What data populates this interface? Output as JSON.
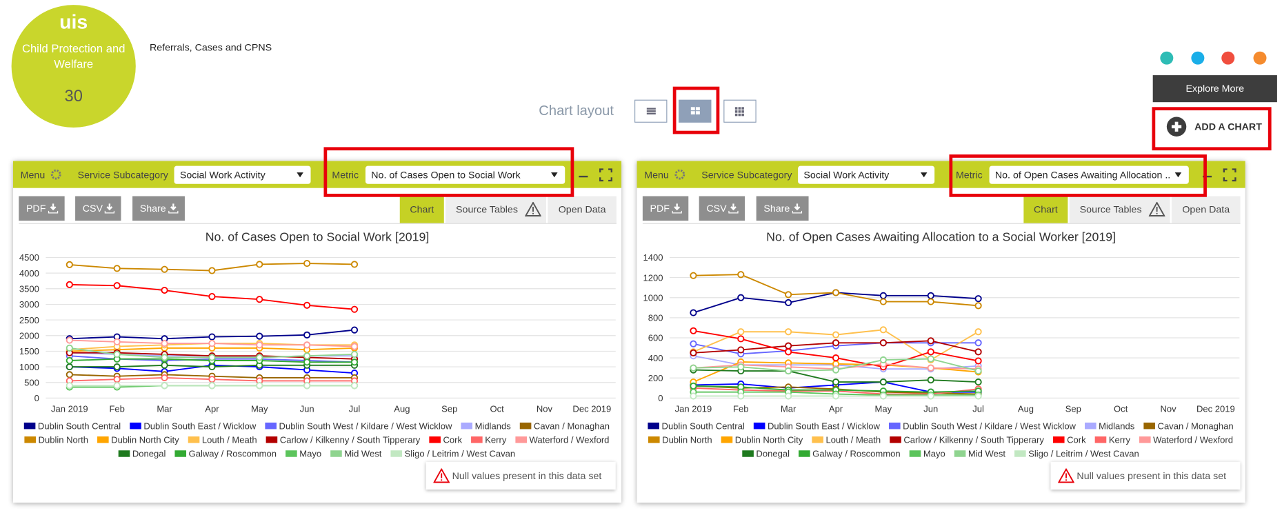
{
  "header": {
    "logo": "uis",
    "tile_title": "Child Protection and Welfare",
    "tile_count": "30",
    "subtitle": "Referrals, Cases and CPNS"
  },
  "layout": {
    "label": "Chart layout"
  },
  "actions": {
    "explore": "Explore More",
    "add": "ADD A CHART"
  },
  "panels": [
    {
      "menu": "Menu",
      "subcategory_label": "Service Subcategory",
      "subcategory": "Social Work Activity",
      "metric_label": "Metric",
      "metric": "No. of Cases Open to Social Work",
      "buttons": [
        "PDF",
        "CSV",
        "Share"
      ],
      "tabs": [
        "Chart",
        "Source Tables",
        "Open Data"
      ],
      "note": "Null values present in this data set"
    },
    {
      "menu": "Menu",
      "subcategory_label": "Service Subcategory",
      "subcategory": "Social Work Activity",
      "metric_label": "Metric",
      "metric": "No. of Open Cases Awaiting Allocation ..",
      "buttons": [
        "PDF",
        "CSV",
        "Share"
      ],
      "tabs": [
        "Chart",
        "Source Tables",
        "Open Data"
      ],
      "note": "Null values present in this data set"
    }
  ],
  "chart_data": [
    {
      "type": "line",
      "title": "No. of Cases Open to Social Work [2019]",
      "categories": [
        "Jan 2019",
        "Feb",
        "Mar",
        "Apr",
        "May",
        "Jun",
        "Jul",
        "Aug",
        "Sep",
        "Oct",
        "Nov",
        "Dec 2019"
      ],
      "ylim": [
        0,
        4500
      ],
      "yticks": [
        0,
        500,
        1000,
        1500,
        2000,
        2500,
        3000,
        3500,
        4000,
        4500
      ],
      "grid": true,
      "series": [
        {
          "name": "Dublin South Central",
          "color": "#00008b",
          "values": [
            1900,
            1960,
            1900,
            1960,
            1980,
            2020,
            2180,
            null,
            null,
            null,
            null,
            null
          ]
        },
        {
          "name": "Dublin South East / Wicklow",
          "color": "#0000ff",
          "values": [
            1000,
            950,
            850,
            1050,
            1000,
            900,
            800,
            null,
            null,
            null,
            null,
            null
          ]
        },
        {
          "name": "Dublin South West / Kildare / West Wicklow",
          "color": "#6666ff",
          "values": [
            1350,
            1250,
            1200,
            1250,
            1250,
            1200,
            1150,
            null,
            null,
            null,
            null,
            null
          ]
        },
        {
          "name": "Midlands",
          "color": "#aaaaff",
          "values": [
            1450,
            1400,
            1350,
            1350,
            1300,
            1350,
            1350,
            null,
            null,
            null,
            null,
            null
          ]
        },
        {
          "name": "Cavan / Monaghan",
          "color": "#996600",
          "values": [
            750,
            700,
            750,
            700,
            650,
            650,
            650,
            null,
            null,
            null,
            null,
            null
          ]
        },
        {
          "name": "Dublin North",
          "color": "#cc8800",
          "values": [
            4270,
            4150,
            4120,
            4080,
            4280,
            4310,
            4280,
            null,
            null,
            null,
            null,
            null
          ]
        },
        {
          "name": "Dublin North City",
          "color": "#ffa500",
          "values": [
            1500,
            1550,
            1600,
            1600,
            1600,
            1550,
            1600,
            null,
            null,
            null,
            null,
            null
          ]
        },
        {
          "name": "Louth / Meath",
          "color": "#ffc04d",
          "values": [
            1550,
            1650,
            1700,
            1750,
            1750,
            1700,
            1700,
            null,
            null,
            null,
            null,
            null
          ]
        },
        {
          "name": "Carlow / Kilkenny / South Tipperary",
          "color": "#b30000",
          "values": [
            1450,
            1450,
            1400,
            1350,
            1350,
            1300,
            1250,
            null,
            null,
            null,
            null,
            null
          ]
        },
        {
          "name": "Cork",
          "color": "#ff0000",
          "values": [
            3630,
            3600,
            3450,
            3250,
            3160,
            2970,
            2840,
            null,
            null,
            null,
            null,
            null
          ]
        },
        {
          "name": "Kerry",
          "color": "#ff6666",
          "values": [
            550,
            600,
            650,
            600,
            550,
            550,
            550,
            null,
            null,
            null,
            null,
            null
          ]
        },
        {
          "name": "Waterford / Wexford",
          "color": "#ff9999",
          "values": [
            1850,
            1800,
            1750,
            1750,
            1700,
            1700,
            1650,
            null,
            null,
            null,
            null,
            null
          ]
        },
        {
          "name": "Donegal",
          "color": "#1f7a1f",
          "values": [
            1000,
            1000,
            1050,
            1000,
            1050,
            1050,
            1050,
            null,
            null,
            null,
            null,
            null
          ]
        },
        {
          "name": "Galway / Roscommon",
          "color": "#33aa33",
          "values": [
            1200,
            1250,
            1250,
            1200,
            1200,
            1150,
            1150,
            null,
            null,
            null,
            null,
            null
          ]
        },
        {
          "name": "Mayo",
          "color": "#5cc45c",
          "values": [
            350,
            350,
            400,
            400,
            400,
            400,
            400,
            null,
            null,
            null,
            null,
            null
          ]
        },
        {
          "name": "Mid West",
          "color": "#8fd48f",
          "values": [
            1600,
            1400,
            1300,
            1300,
            1300,
            1350,
            1400,
            null,
            null,
            null,
            null,
            null
          ]
        },
        {
          "name": "Sligo / Leitrim / West Cavan",
          "color": "#c2e8c2",
          "values": [
            400,
            400,
            400,
            400,
            400,
            400,
            400,
            null,
            null,
            null,
            null,
            null
          ]
        }
      ]
    },
    {
      "type": "line",
      "title": "No. of Open Cases Awaiting Allocation to a Social Worker [2019]",
      "categories": [
        "Jan 2019",
        "Feb",
        "Mar",
        "Apr",
        "May",
        "Jun",
        "Jul",
        "Aug",
        "Sep",
        "Oct",
        "Nov",
        "Dec 2019"
      ],
      "ylim": [
        0,
        1400
      ],
      "yticks": [
        0,
        200,
        400,
        600,
        800,
        1000,
        1200,
        1400
      ],
      "grid": true,
      "series": [
        {
          "name": "Dublin South Central",
          "color": "#00008b",
          "values": [
            850,
            1000,
            950,
            1050,
            1020,
            1020,
            990,
            null,
            null,
            null,
            null,
            null
          ]
        },
        {
          "name": "Dublin South East / Wicklow",
          "color": "#0000ff",
          "values": [
            130,
            140,
            100,
            130,
            160,
            60,
            60,
            null,
            null,
            null,
            null,
            null
          ]
        },
        {
          "name": "Dublin South West / Kildare / West Wicklow",
          "color": "#6666ff",
          "values": [
            540,
            440,
            470,
            520,
            550,
            550,
            550,
            null,
            null,
            null,
            null,
            null
          ]
        },
        {
          "name": "Midlands",
          "color": "#aaaaff",
          "values": [
            420,
            330,
            330,
            330,
            290,
            290,
            320,
            null,
            null,
            null,
            null,
            null
          ]
        },
        {
          "name": "Cavan / Monaghan",
          "color": "#996600",
          "values": [
            120,
            100,
            110,
            90,
            60,
            50,
            40,
            null,
            null,
            null,
            null,
            null
          ]
        },
        {
          "name": "Dublin North",
          "color": "#cc8800",
          "values": [
            1220,
            1230,
            1030,
            1050,
            960,
            960,
            920,
            null,
            null,
            null,
            null,
            null
          ]
        },
        {
          "name": "Dublin North City",
          "color": "#ffa500",
          "values": [
            160,
            360,
            350,
            340,
            330,
            300,
            260,
            null,
            null,
            null,
            null,
            null
          ]
        },
        {
          "name": "Louth / Meath",
          "color": "#ffc04d",
          "values": [
            460,
            660,
            660,
            630,
            680,
            380,
            660,
            null,
            null,
            null,
            null,
            null
          ]
        },
        {
          "name": "Carlow / Kilkenny / South Tipperary",
          "color": "#b30000",
          "values": [
            450,
            480,
            520,
            550,
            550,
            570,
            460,
            null,
            null,
            null,
            null,
            null
          ]
        },
        {
          "name": "Cork",
          "color": "#ff0000",
          "values": [
            670,
            590,
            460,
            400,
            310,
            460,
            370,
            null,
            null,
            null,
            null,
            null
          ]
        },
        {
          "name": "Kerry",
          "color": "#ff6666",
          "values": [
            100,
            80,
            70,
            70,
            40,
            40,
            90,
            null,
            null,
            null,
            null,
            null
          ]
        },
        {
          "name": "Waterford / Wexford",
          "color": "#ff9999",
          "values": [
            300,
            330,
            310,
            290,
            340,
            300,
            290,
            null,
            null,
            null,
            null,
            null
          ]
        },
        {
          "name": "Donegal",
          "color": "#1f7a1f",
          "values": [
            280,
            270,
            270,
            160,
            160,
            180,
            160,
            null,
            null,
            null,
            null,
            null
          ]
        },
        {
          "name": "Galway / Roscommon",
          "color": "#33aa33",
          "values": [
            120,
            110,
            80,
            80,
            70,
            60,
            70,
            null,
            null,
            null,
            null,
            null
          ]
        },
        {
          "name": "Mayo",
          "color": "#5cc45c",
          "values": [
            60,
            60,
            60,
            40,
            30,
            30,
            30,
            null,
            null,
            null,
            null,
            null
          ]
        },
        {
          "name": "Mid West",
          "color": "#8fd48f",
          "values": [
            300,
            310,
            270,
            280,
            380,
            390,
            270,
            null,
            null,
            null,
            null,
            null
          ]
        },
        {
          "name": "Sligo / Leitrim / West Cavan",
          "color": "#c2e8c2",
          "values": [
            20,
            20,
            20,
            20,
            20,
            20,
            20,
            null,
            null,
            null,
            null,
            null
          ]
        }
      ]
    }
  ]
}
